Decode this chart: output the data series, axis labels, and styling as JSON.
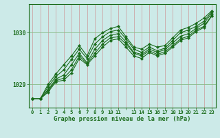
{
  "title": "Graphe pression niveau de la mer (hPa)",
  "bg_color": "#cceae8",
  "line_color": "#1a6b1a",
  "grid_color_v": "#cc9999",
  "grid_color_h": "#88bb88",
  "ylabel_ticks": [
    1029,
    1030
  ],
  "xlim": [
    -0.5,
    23.5
  ],
  "ylim": [
    1028.55,
    1030.55
  ],
  "lines": [
    [
      1028.72,
      1028.72,
      1028.85,
      1029.05,
      1029.08,
      1029.22,
      1029.5,
      1029.38,
      1029.55,
      1029.72,
      1029.85,
      1029.88,
      1029.72,
      1029.55,
      1029.5,
      1029.62,
      1029.55,
      1029.6,
      1029.72,
      1029.85,
      1029.9,
      1030.02,
      1030.1,
      1030.32
    ],
    [
      1028.72,
      1028.72,
      1028.88,
      1029.07,
      1029.12,
      1029.28,
      1029.55,
      1029.4,
      1029.6,
      1029.78,
      1029.9,
      1029.92,
      1029.78,
      1029.6,
      1029.55,
      1029.65,
      1029.58,
      1029.63,
      1029.75,
      1029.88,
      1029.93,
      1030.05,
      1030.12,
      1030.33
    ],
    [
      1028.72,
      1028.72,
      1028.9,
      1029.1,
      1029.18,
      1029.38,
      1029.6,
      1029.42,
      1029.68,
      1029.85,
      1029.95,
      1029.98,
      1029.82,
      1029.62,
      1029.58,
      1029.68,
      1029.62,
      1029.67,
      1029.8,
      1029.93,
      1029.98,
      1030.08,
      1030.18,
      1030.37
    ],
    [
      1028.72,
      1028.72,
      1028.95,
      1029.15,
      1029.28,
      1029.48,
      1029.68,
      1029.5,
      1029.78,
      1029.92,
      1030.02,
      1030.05,
      1029.88,
      1029.68,
      1029.62,
      1029.72,
      1029.65,
      1029.7,
      1029.85,
      1030.0,
      1030.05,
      1030.12,
      1030.22,
      1030.4
    ],
    [
      1028.72,
      1028.72,
      1029.0,
      1029.2,
      1029.38,
      1029.55,
      1029.75,
      1029.55,
      1029.88,
      1030.0,
      1030.08,
      1030.12,
      1029.92,
      1029.72,
      1029.68,
      1029.78,
      1029.72,
      1029.75,
      1029.9,
      1030.05,
      1030.1,
      1030.18,
      1030.28,
      1030.42
    ]
  ]
}
